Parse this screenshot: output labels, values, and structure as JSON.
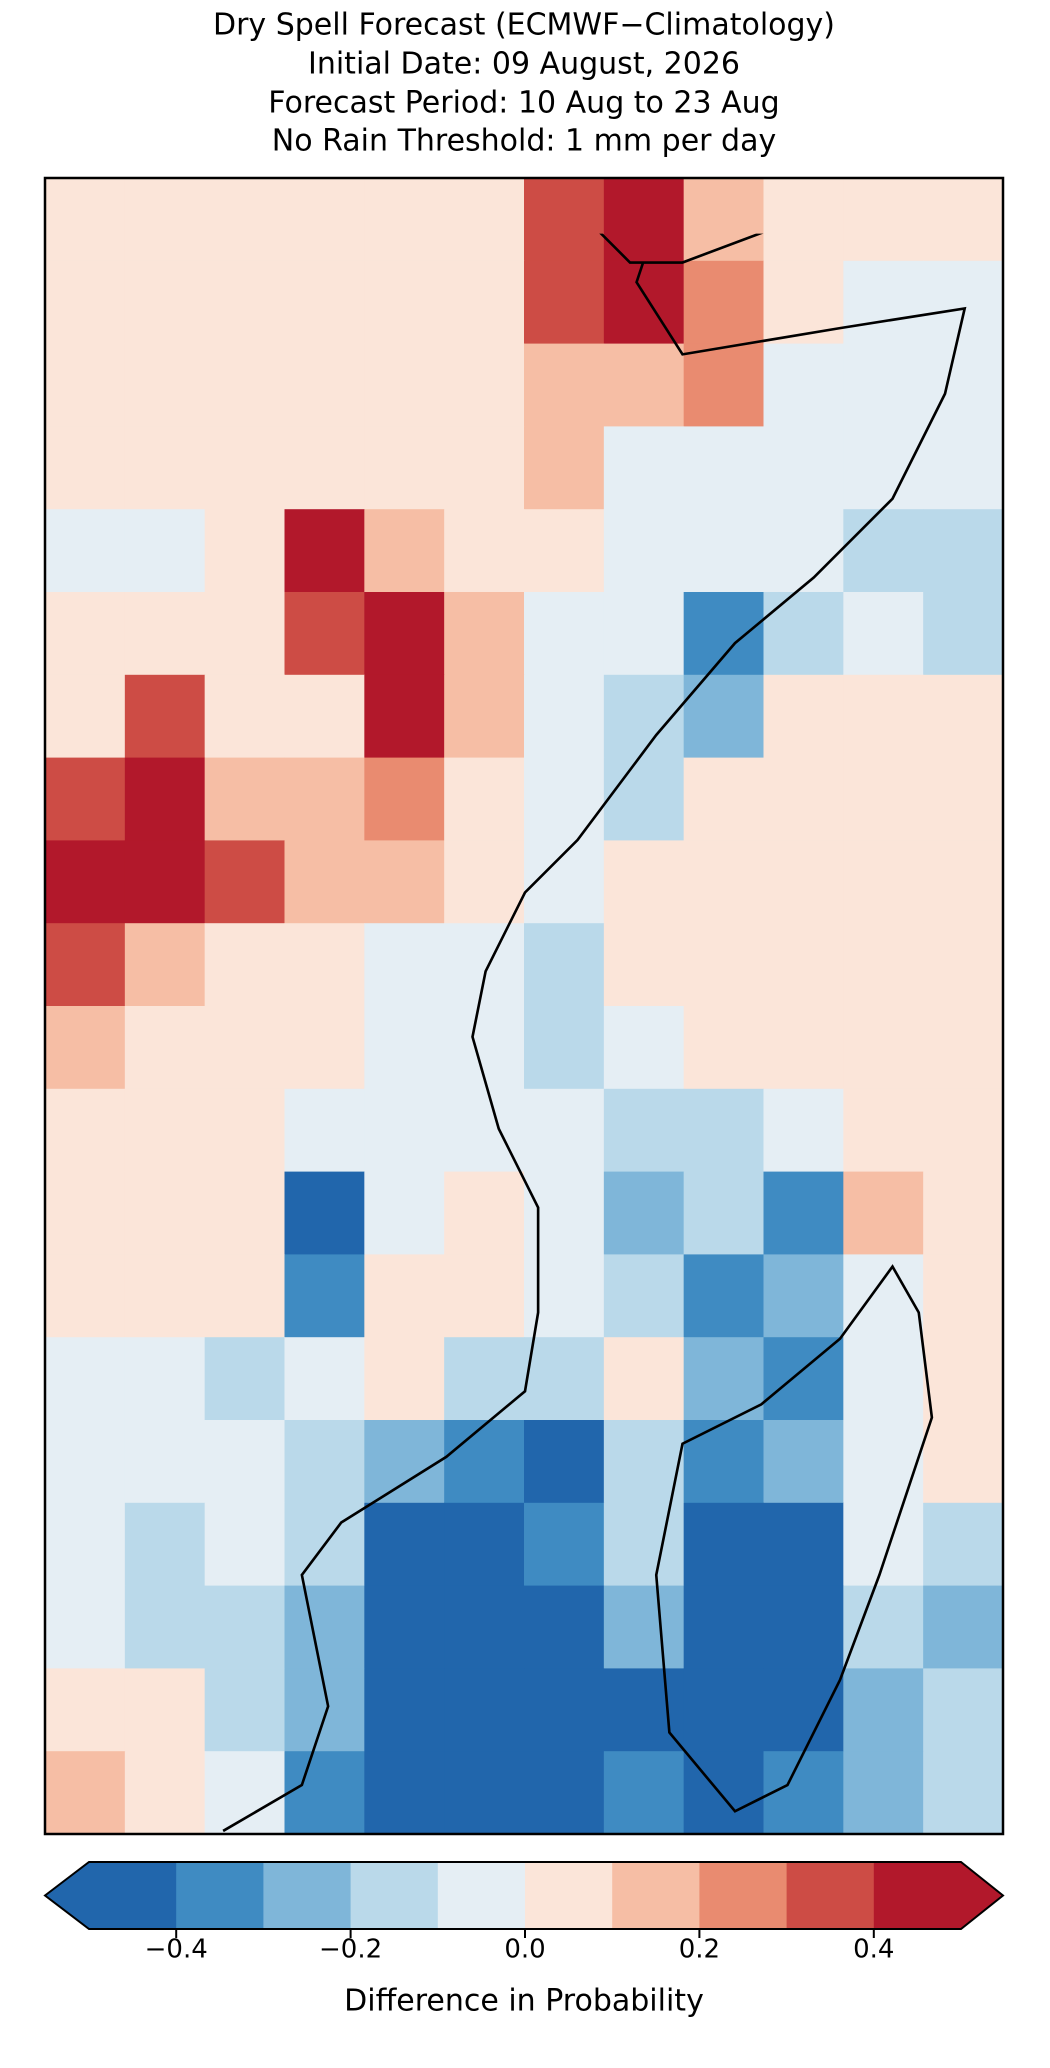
{
  "chart_data": {
    "type": "heatmap",
    "title": [
      "Dry Spell Forecast (ECMWF−Climatology)",
      "Initial Date: 09 August, 2026",
      "Forecast Period: 10 Aug to 23 Aug",
      "No Rain Threshold: 1 mm per day"
    ],
    "values": [
      [
        0.05,
        0.05,
        0.05,
        0.05,
        0.05,
        0.05,
        0.35,
        0.45,
        0.1,
        0.05,
        0.05,
        0.05
      ],
      [
        0.05,
        0.05,
        0.05,
        0.05,
        0.05,
        0.05,
        0.3,
        0.4,
        0.2,
        0.05,
        -0.05,
        -0.05
      ],
      [
        0.05,
        0.05,
        0.05,
        0.05,
        0.05,
        0.05,
        0.1,
        0.1,
        0.25,
        -0.05,
        -0.05,
        -0.05
      ],
      [
        0.05,
        0.05,
        0.05,
        0.05,
        0.05,
        0.05,
        0.15,
        -0.05,
        -0.05,
        -0.05,
        -0.05,
        -0.05
      ],
      [
        -0.05,
        -0.05,
        0.05,
        0.45,
        0.15,
        0.05,
        0.05,
        -0.05,
        -0.05,
        -0.05,
        -0.15,
        -0.15
      ],
      [
        0.05,
        0.05,
        0.05,
        0.35,
        0.45,
        0.15,
        -0.05,
        -0.05,
        -0.35,
        -0.15,
        -0.05,
        -0.15
      ],
      [
        0.05,
        0.35,
        0.05,
        0.05,
        0.45,
        0.15,
        -0.05,
        -0.15,
        -0.25,
        0.05,
        0.05,
        0.05
      ],
      [
        0.35,
        0.45,
        0.15,
        0.15,
        0.25,
        0.05,
        -0.05,
        -0.15,
        0.05,
        0.05,
        0.05,
        0.05
      ],
      [
        0.45,
        0.45,
        0.35,
        0.15,
        0.15,
        0.05,
        -0.05,
        0.05,
        0.05,
        0.05,
        0.05,
        0.05
      ],
      [
        0.35,
        0.15,
        0.05,
        0.05,
        -0.05,
        -0.05,
        -0.15,
        0.05,
        0.05,
        0.05,
        0.05,
        0.05
      ],
      [
        0.15,
        0.05,
        0.05,
        0.05,
        -0.05,
        -0.05,
        -0.15,
        -0.05,
        0.05,
        0.05,
        0.05,
        0.05
      ],
      [
        0.05,
        0.05,
        0.05,
        -0.05,
        -0.05,
        -0.05,
        -0.05,
        -0.15,
        -0.15,
        -0.05,
        0.05,
        0.05
      ],
      [
        0.05,
        0.05,
        0.05,
        -0.45,
        -0.05,
        0.05,
        -0.05,
        -0.25,
        -0.15,
        -0.35,
        0.15,
        0.05
      ],
      [
        0.05,
        0.05,
        0.05,
        -0.35,
        0.05,
        0.05,
        -0.05,
        -0.15,
        -0.35,
        -0.25,
        -0.05,
        0.05
      ],
      [
        -0.05,
        -0.05,
        -0.15,
        -0.05,
        0.05,
        -0.15,
        -0.15,
        0.05,
        -0.25,
        -0.35,
        -0.05,
        0.05
      ],
      [
        -0.05,
        -0.05,
        -0.05,
        -0.15,
        -0.25,
        -0.35,
        -0.45,
        -0.15,
        -0.35,
        -0.25,
        -0.05,
        0.05
      ],
      [
        -0.05,
        -0.15,
        -0.05,
        -0.15,
        -0.45,
        -0.45,
        -0.35,
        -0.15,
        -0.45,
        -0.45,
        -0.05,
        -0.15
      ],
      [
        -0.05,
        -0.15,
        -0.15,
        -0.25,
        -0.45,
        -0.45,
        -0.45,
        -0.25,
        -0.45,
        -0.45,
        -0.15,
        -0.25
      ],
      [
        0.05,
        0.05,
        -0.15,
        -0.25,
        -0.45,
        -0.45,
        -0.45,
        -0.45,
        -0.45,
        -0.45,
        -0.25,
        -0.15
      ],
      [
        0.15,
        0.05,
        -0.05,
        -0.35,
        -0.45,
        -0.45,
        -0.45,
        -0.35,
        -0.45,
        -0.35,
        -0.25,
        -0.15
      ]
    ],
    "colorbar": {
      "levels": [
        -0.5,
        -0.4,
        -0.3,
        -0.2,
        -0.1,
        0,
        0.1,
        0.2,
        0.3,
        0.4,
        0.5
      ],
      "colors": [
        "#2166ac",
        "#3f8bc2",
        "#7fb6d9",
        "#bad9ea",
        "#e5eef4",
        "#fbe5d9",
        "#f6bea5",
        "#e98b70",
        "#cd4c45",
        "#b2182b"
      ],
      "ticks": [
        {
          "value": -0.4,
          "label": "−0.4"
        },
        {
          "value": -0.2,
          "label": "−0.2"
        },
        {
          "value": 0,
          "label": "0.0"
        },
        0.2,
        0.4
      ],
      "label": "Difference in Probability"
    }
  }
}
